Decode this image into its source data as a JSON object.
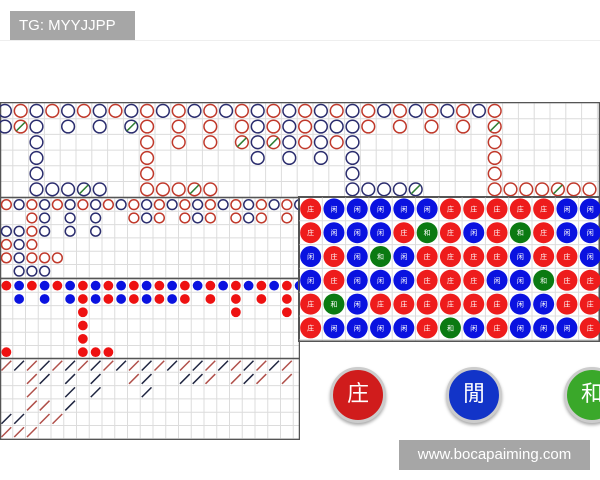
{
  "header": {
    "tg_label": "TG: MYYJJPP"
  },
  "colors": {
    "banker": "#c0392b",
    "player": "#2b2d6e",
    "tie_slash": "#2e7d32",
    "bead_banker": "#ee1c1c",
    "bead_player": "#0a12e0",
    "bead_tie": "#0b7a12"
  },
  "labels": {
    "banker": "庄",
    "player": "闲",
    "tie": "和"
  },
  "big_road": {
    "legend": "B=banker(red) P=player(blue) lowercase=with tie slash",
    "rows": [
      "PBPBPBPBPBPBPBPBPBPBPBPBPBPBPBPB",
      "PbP.P.P.pB.B.B.BPBPBPPPB.B.B.B.b",
      "..P......B.B.B.bPbPBPBP........B",
      "..P......B......P.P.P.P........B",
      "..P......B............P........B",
      "..PPPpP..BBBbB........PPPPp....BBBBbBB"
    ]
  },
  "big_eye_road": {
    "rows": [
      "BPBPBPBPBPBPBPBPBPBPBPBP",
      "..BP.P.P..BPB.BPB.BPB.B.",
      "PPBP.P.P",
      "BPB",
      "BPBBB",
      ".PPP"
    ]
  },
  "small_road": {
    "rows": [
      "BPBPBPBPBPBPBPBPBPBPBPBP",
      ".P.P.PBPBPBPBPB.B.B.B.B",
      "......B...........B...B",
      "......B",
      "......B",
      "B.....BBB"
    ]
  },
  "cockroach_road": {
    "rows": [
      "BPBPBPBPBPBPBPBPBPBPBPB",
      "..BP.P.P..BP..PPB.BPB.B",
      "..B..P.P...P",
      "..BB.P",
      "PP.BB",
      "BBB"
    ]
  },
  "bead_plate": {
    "rows": [
      "BPPPPPBBBBBPP",
      "BPPPBTBPBTBPP",
      "PBPTPBBBBPBBP",
      "PBPPPBBBPPTBB",
      "BTPBBBBBBPPBB",
      "BPPPPBTPBPPPB"
    ]
  },
  "buttons": [
    {
      "label": "庄",
      "color": "#d01c1c"
    },
    {
      "label": "閒",
      "color": "#1234c8"
    },
    {
      "label": "和",
      "color": "#3aa82a"
    }
  ],
  "watermark": "www.bocapaiming.com"
}
